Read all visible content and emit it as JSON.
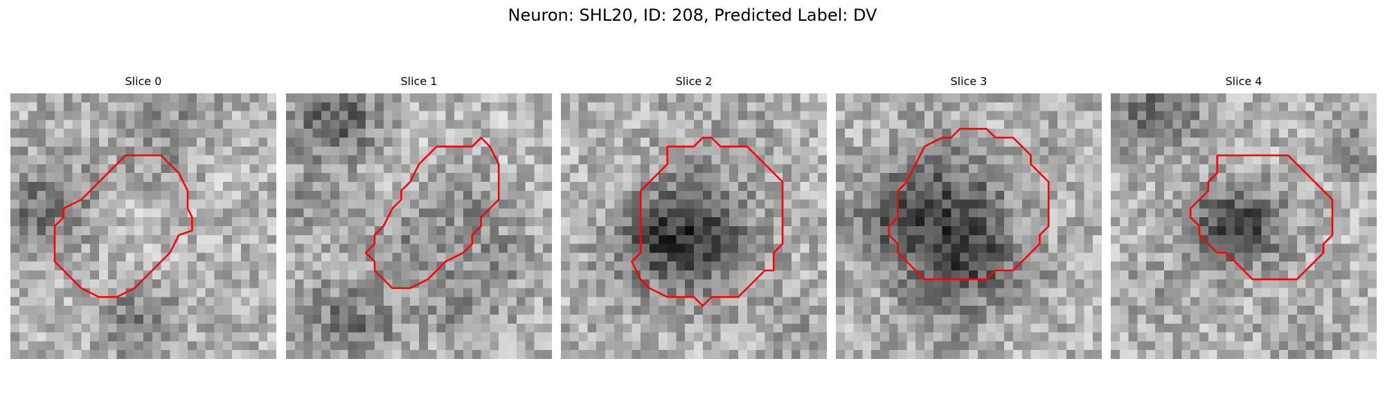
{
  "figure": {
    "title": "Neuron: SHL20, ID: 208, Predicted Label: DV"
  },
  "colors": {
    "contour": "#ff0000"
  },
  "panels": [
    {
      "label": "Slice 0",
      "seed": 11,
      "blobs": [
        [
          4,
          12,
          4,
          -45
        ],
        [
          18,
          3,
          5,
          -35
        ],
        [
          24,
          4,
          4,
          10
        ],
        [
          6,
          2,
          3,
          -15
        ],
        [
          11,
          9,
          5,
          -10
        ],
        [
          12,
          14,
          3,
          25
        ],
        [
          8,
          4,
          3,
          20
        ],
        [
          14,
          25,
          3,
          -55
        ],
        [
          24,
          9,
          3,
          12
        ],
        [
          3,
          14,
          3,
          -30
        ]
      ],
      "contour": [
        [
          13,
          7
        ],
        [
          17,
          7
        ],
        [
          19,
          9
        ],
        [
          20,
          11
        ],
        [
          20,
          13
        ],
        [
          20.5,
          14
        ],
        [
          20.5,
          15.5
        ],
        [
          19,
          16
        ],
        [
          18,
          18
        ],
        [
          16,
          20
        ],
        [
          14,
          22
        ],
        [
          12,
          23
        ],
        [
          10,
          23
        ],
        [
          8,
          22
        ],
        [
          6,
          20
        ],
        [
          5,
          19
        ],
        [
          5,
          15
        ],
        [
          6,
          14
        ],
        [
          6,
          13
        ],
        [
          8,
          12
        ],
        [
          9,
          11
        ],
        [
          10,
          10
        ],
        [
          11,
          9
        ],
        [
          12,
          8
        ],
        [
          13,
          7
        ]
      ]
    },
    {
      "label": "Slice 1",
      "seed": 23,
      "blobs": [
        [
          4,
          3,
          3,
          -60
        ],
        [
          2,
          12,
          3,
          -30
        ],
        [
          7,
          2,
          3,
          -40
        ],
        [
          15,
          15,
          3,
          -25
        ],
        [
          12,
          18,
          3,
          -20
        ],
        [
          20,
          12,
          3,
          -30
        ],
        [
          8,
          26,
          3,
          -50
        ],
        [
          4,
          24,
          3,
          -30
        ],
        [
          24,
          18,
          3,
          -30
        ],
        [
          14,
          8,
          3,
          10
        ],
        [
          26,
          4,
          3,
          12
        ],
        [
          20,
          24,
          3,
          -25
        ],
        [
          17,
          22,
          3,
          -20
        ]
      ],
      "contour": [
        [
          17,
          6
        ],
        [
          21,
          6
        ],
        [
          22,
          5
        ],
        [
          23,
          6
        ],
        [
          24,
          8
        ],
        [
          24,
          12
        ],
        [
          23,
          13
        ],
        [
          22,
          14
        ],
        [
          22,
          15
        ],
        [
          21,
          16
        ],
        [
          21,
          17
        ],
        [
          20,
          18
        ],
        [
          18,
          19
        ],
        [
          17,
          20
        ],
        [
          16,
          21
        ],
        [
          14,
          22
        ],
        [
          12,
          22
        ],
        [
          11,
          21
        ],
        [
          10,
          20
        ],
        [
          10,
          19
        ],
        [
          9,
          18
        ],
        [
          10,
          17
        ],
        [
          10,
          16
        ],
        [
          11,
          15
        ],
        [
          12,
          13
        ],
        [
          13,
          12
        ],
        [
          13,
          11
        ],
        [
          14,
          10
        ],
        [
          15,
          8
        ],
        [
          16,
          7
        ],
        [
          17,
          6
        ]
      ]
    },
    {
      "label": "Slice 2",
      "seed": 37,
      "blobs": [
        [
          14,
          16,
          5,
          -90
        ],
        [
          10,
          16,
          3,
          -40
        ],
        [
          16,
          14,
          3,
          -30
        ],
        [
          12,
          4,
          4,
          -10
        ],
        [
          26,
          26,
          3,
          -25
        ],
        [
          4,
          18,
          3,
          -10
        ],
        [
          22,
          2,
          3,
          -15
        ],
        [
          6,
          4,
          3,
          8
        ]
      ],
      "contour": [
        [
          12,
          6
        ],
        [
          15,
          6
        ],
        [
          16,
          5
        ],
        [
          17,
          5
        ],
        [
          18,
          6
        ],
        [
          21,
          6
        ],
        [
          23,
          8
        ],
        [
          24,
          9
        ],
        [
          25,
          10
        ],
        [
          25,
          17
        ],
        [
          24,
          18
        ],
        [
          24,
          20
        ],
        [
          23,
          20
        ],
        [
          22,
          21
        ],
        [
          21,
          22
        ],
        [
          20,
          23
        ],
        [
          18,
          23
        ],
        [
          17,
          23
        ],
        [
          16,
          24
        ],
        [
          15,
          23
        ],
        [
          12,
          23
        ],
        [
          10,
          22
        ],
        [
          9,
          21
        ],
        [
          8,
          19
        ],
        [
          9,
          18
        ],
        [
          9,
          11
        ],
        [
          10,
          10
        ],
        [
          11,
          9
        ],
        [
          12,
          8
        ],
        [
          12,
          6
        ]
      ]
    },
    {
      "label": "Slice 3",
      "seed": 49,
      "blobs": [
        [
          12,
          16,
          5,
          -80
        ],
        [
          8,
          12,
          4,
          -45
        ],
        [
          10,
          7,
          3,
          -30
        ],
        [
          16,
          18,
          3,
          -50
        ],
        [
          16,
          11,
          3,
          -25
        ],
        [
          12,
          24,
          4,
          -20
        ],
        [
          22,
          22,
          3,
          -15
        ],
        [
          3,
          15,
          3,
          -30
        ],
        [
          24,
          5,
          3,
          -15
        ]
      ],
      "contour": [
        [
          10,
          6
        ],
        [
          12,
          5
        ],
        [
          13,
          5
        ],
        [
          14,
          4
        ],
        [
          17,
          4
        ],
        [
          18,
          5
        ],
        [
          20,
          5
        ],
        [
          21,
          6
        ],
        [
          22,
          7
        ],
        [
          22,
          8
        ],
        [
          23,
          9
        ],
        [
          24,
          10
        ],
        [
          24,
          15
        ],
        [
          23,
          16
        ],
        [
          23,
          17
        ],
        [
          22,
          18
        ],
        [
          21,
          19
        ],
        [
          20,
          20
        ],
        [
          18,
          20
        ],
        [
          17,
          21
        ],
        [
          10,
          21
        ],
        [
          9,
          20
        ],
        [
          8,
          19
        ],
        [
          7,
          18
        ],
        [
          7,
          17
        ],
        [
          6,
          16
        ],
        [
          6,
          15
        ],
        [
          7,
          14
        ],
        [
          7,
          11
        ],
        [
          8,
          10
        ],
        [
          9,
          8
        ],
        [
          10,
          6
        ]
      ]
    },
    {
      "label": "Slice 4",
      "seed": 61,
      "blobs": [
        [
          14,
          15,
          3,
          -70
        ],
        [
          12,
          14,
          3,
          -40
        ],
        [
          18,
          14,
          3,
          -30
        ],
        [
          3,
          2,
          3,
          -55
        ],
        [
          7,
          2,
          3,
          -40
        ],
        [
          27,
          6,
          3,
          -30
        ],
        [
          22,
          27,
          4,
          -15
        ],
        [
          9,
          13,
          3,
          -10
        ],
        [
          4,
          22,
          3,
          -20
        ],
        [
          24,
          12,
          3,
          10
        ]
      ],
      "contour": [
        [
          12,
          7
        ],
        [
          14,
          7
        ],
        [
          15,
          7
        ],
        [
          16,
          7
        ],
        [
          17,
          7
        ],
        [
          18,
          7
        ],
        [
          20,
          7
        ],
        [
          21,
          8
        ],
        [
          22,
          9
        ],
        [
          23,
          10
        ],
        [
          24,
          11
        ],
        [
          25,
          12
        ],
        [
          25,
          16
        ],
        [
          24,
          17
        ],
        [
          24,
          18
        ],
        [
          23,
          19
        ],
        [
          22,
          20
        ],
        [
          21,
          21
        ],
        [
          16,
          21
        ],
        [
          15,
          20
        ],
        [
          14,
          19
        ],
        [
          13,
          18
        ],
        [
          12,
          18
        ],
        [
          11,
          17
        ],
        [
          10,
          16
        ],
        [
          10,
          15
        ],
        [
          9,
          14
        ],
        [
          9,
          13
        ],
        [
          10,
          12
        ],
        [
          11,
          11
        ],
        [
          11,
          10
        ],
        [
          12,
          9
        ],
        [
          12,
          7
        ]
      ]
    }
  ]
}
